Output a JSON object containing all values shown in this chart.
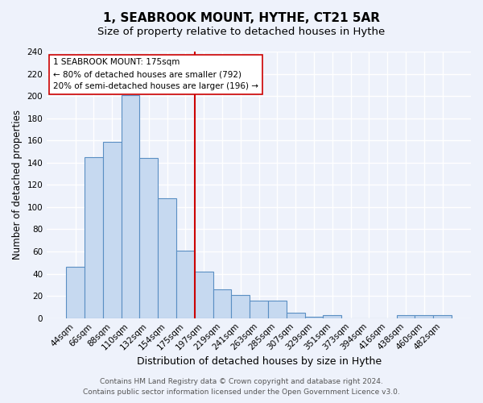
{
  "title": "1, SEABROOK MOUNT, HYTHE, CT21 5AR",
  "subtitle": "Size of property relative to detached houses in Hythe",
  "xlabel": "Distribution of detached houses by size in Hythe",
  "ylabel": "Number of detached properties",
  "bar_labels": [
    "44sqm",
    "66sqm",
    "88sqm",
    "110sqm",
    "132sqm",
    "154sqm",
    "175sqm",
    "197sqm",
    "219sqm",
    "241sqm",
    "263sqm",
    "285sqm",
    "307sqm",
    "329sqm",
    "351sqm",
    "373sqm",
    "394sqm",
    "416sqm",
    "438sqm",
    "460sqm",
    "482sqm"
  ],
  "bar_values": [
    46,
    145,
    159,
    201,
    144,
    108,
    61,
    42,
    26,
    21,
    16,
    16,
    5,
    1,
    3,
    0,
    0,
    0,
    3,
    3,
    3
  ],
  "bar_color": "#c6d9f0",
  "bar_edge_color": "#5a8fc3",
  "vline_color": "#cc0000",
  "annotation_title": "1 SEABROOK MOUNT: 175sqm",
  "annotation_line1": "← 80% of detached houses are smaller (792)",
  "annotation_line2": "20% of semi-detached houses are larger (196) →",
  "annotation_box_color": "#ffffff",
  "annotation_box_edge": "#cc0000",
  "ylim": [
    0,
    240
  ],
  "yticks": [
    0,
    20,
    40,
    60,
    80,
    100,
    120,
    140,
    160,
    180,
    200,
    220,
    240
  ],
  "footer1": "Contains HM Land Registry data © Crown copyright and database right 2024.",
  "footer2": "Contains public sector information licensed under the Open Government Licence v3.0.",
  "background_color": "#eef2fb",
  "grid_color": "#ffffff",
  "title_fontsize": 11,
  "subtitle_fontsize": 9.5,
  "xlabel_fontsize": 9,
  "ylabel_fontsize": 8.5,
  "tick_fontsize": 7.5,
  "footer_fontsize": 6.5
}
